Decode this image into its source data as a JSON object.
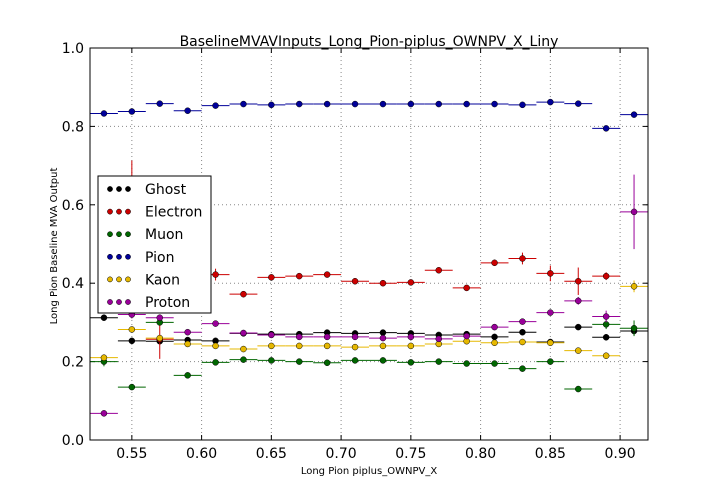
{
  "chart_data": {
    "type": "scatter",
    "title": "BaselineMVAVInputs_Long_Pion-piplus_OWNPV_X_Liny",
    "xlabel": "Long Pion piplus_OWNPV_X",
    "ylabel": "Long Pion Baseline MVA Output",
    "xlim": [
      0.52,
      0.92
    ],
    "ylim": [
      0.0,
      1.0
    ],
    "x_ticks": [
      "0.55",
      "0.60",
      "0.65",
      "0.70",
      "0.75",
      "0.80",
      "0.85",
      "0.90"
    ],
    "y_ticks": [
      "0.0",
      "0.2",
      "0.4",
      "0.6",
      "0.8",
      "1.0"
    ],
    "grid": true,
    "legend_position": "center-left",
    "bin_half_width": 0.01,
    "series": [
      {
        "name": "Ghost",
        "color": "#000000",
        "x": [
          0.53,
          0.55,
          0.57,
          0.59,
          0.61,
          0.63,
          0.65,
          0.67,
          0.69,
          0.71,
          0.73,
          0.75,
          0.77,
          0.79,
          0.81,
          0.83,
          0.85,
          0.87,
          0.89,
          0.91
        ],
        "y": [
          0.312,
          0.253,
          0.252,
          0.255,
          0.253,
          0.272,
          0.27,
          0.27,
          0.274,
          0.272,
          0.274,
          0.272,
          0.268,
          0.27,
          0.263,
          0.275,
          0.25,
          0.288,
          0.262,
          0.278
        ],
        "err": [
          0.005,
          0.004,
          0.004,
          0.004,
          0.004,
          0.004,
          0.004,
          0.004,
          0.004,
          0.004,
          0.004,
          0.004,
          0.004,
          0.004,
          0.004,
          0.005,
          0.006,
          0.006,
          0.008,
          0.01
        ]
      },
      {
        "name": "Electron",
        "color": "#cc0000",
        "x": [
          0.55,
          0.57,
          0.61,
          0.63,
          0.65,
          0.67,
          0.69,
          0.71,
          0.73,
          0.75,
          0.77,
          0.79,
          0.81,
          0.83,
          0.85,
          0.87,
          0.89
        ],
        "y": [
          0.628,
          0.257,
          0.422,
          0.372,
          0.415,
          0.418,
          0.422,
          0.405,
          0.4,
          0.402,
          0.433,
          0.388,
          0.452,
          0.463,
          0.425,
          0.405,
          0.418
        ],
        "err": [
          0.085,
          0.05,
          0.015,
          0.008,
          0.006,
          0.005,
          0.005,
          0.005,
          0.005,
          0.005,
          0.006,
          0.007,
          0.008,
          0.015,
          0.02,
          0.035,
          0.01
        ]
      },
      {
        "name": "Muon",
        "color": "#006600",
        "x": [
          0.53,
          0.55,
          0.57,
          0.59,
          0.61,
          0.63,
          0.65,
          0.67,
          0.69,
          0.71,
          0.73,
          0.75,
          0.77,
          0.79,
          0.81,
          0.83,
          0.85,
          0.87,
          0.89,
          0.91
        ],
        "y": [
          0.2,
          0.135,
          0.3,
          0.165,
          0.198,
          0.205,
          0.203,
          0.2,
          0.197,
          0.203,
          0.203,
          0.198,
          0.2,
          0.195,
          0.195,
          0.182,
          0.2,
          0.13,
          0.295,
          0.285
        ],
        "err": [
          0.012,
          0.004,
          0.006,
          0.004,
          0.004,
          0.004,
          0.004,
          0.004,
          0.004,
          0.004,
          0.004,
          0.004,
          0.004,
          0.004,
          0.004,
          0.005,
          0.006,
          0.006,
          0.012,
          0.02
        ]
      },
      {
        "name": "Pion",
        "color": "#000099",
        "x": [
          0.53,
          0.55,
          0.57,
          0.59,
          0.61,
          0.63,
          0.65,
          0.67,
          0.69,
          0.71,
          0.73,
          0.75,
          0.77,
          0.79,
          0.81,
          0.83,
          0.85,
          0.87,
          0.89,
          0.91
        ],
        "y": [
          0.833,
          0.838,
          0.858,
          0.84,
          0.853,
          0.857,
          0.855,
          0.857,
          0.857,
          0.857,
          0.857,
          0.857,
          0.857,
          0.857,
          0.857,
          0.855,
          0.862,
          0.858,
          0.795,
          0.83
        ],
        "err": [
          0.002,
          0.002,
          0.002,
          0.002,
          0.002,
          0.002,
          0.002,
          0.002,
          0.002,
          0.002,
          0.002,
          0.002,
          0.002,
          0.002,
          0.002,
          0.002,
          0.002,
          0.002,
          0.003,
          0.003
        ]
      },
      {
        "name": "Kaon",
        "color": "#e6b800",
        "x": [
          0.53,
          0.55,
          0.57,
          0.59,
          0.61,
          0.63,
          0.65,
          0.67,
          0.69,
          0.71,
          0.73,
          0.75,
          0.77,
          0.79,
          0.81,
          0.83,
          0.85,
          0.87,
          0.89,
          0.91
        ],
        "y": [
          0.21,
          0.282,
          0.26,
          0.245,
          0.24,
          0.232,
          0.24,
          0.24,
          0.24,
          0.237,
          0.24,
          0.24,
          0.245,
          0.252,
          0.248,
          0.25,
          0.248,
          0.228,
          0.215,
          0.392
        ],
        "err": [
          0.008,
          0.006,
          0.006,
          0.005,
          0.005,
          0.004,
          0.004,
          0.004,
          0.004,
          0.004,
          0.004,
          0.004,
          0.004,
          0.004,
          0.004,
          0.005,
          0.006,
          0.006,
          0.008,
          0.015
        ]
      },
      {
        "name": "Proton",
        "color": "#990099",
        "x": [
          0.53,
          0.55,
          0.57,
          0.59,
          0.61,
          0.63,
          0.65,
          0.67,
          0.69,
          0.71,
          0.73,
          0.75,
          0.77,
          0.79,
          0.81,
          0.83,
          0.85,
          0.87,
          0.89,
          0.91
        ],
        "y": [
          0.068,
          0.32,
          0.312,
          0.275,
          0.297,
          0.273,
          0.268,
          0.263,
          0.263,
          0.263,
          0.26,
          0.263,
          0.258,
          0.265,
          0.288,
          0.302,
          0.325,
          0.355,
          0.315,
          0.582
        ],
        "err": [
          0.004,
          0.01,
          0.008,
          0.005,
          0.005,
          0.004,
          0.004,
          0.004,
          0.004,
          0.004,
          0.004,
          0.004,
          0.004,
          0.004,
          0.005,
          0.006,
          0.006,
          0.01,
          0.015,
          0.095
        ]
      }
    ]
  }
}
